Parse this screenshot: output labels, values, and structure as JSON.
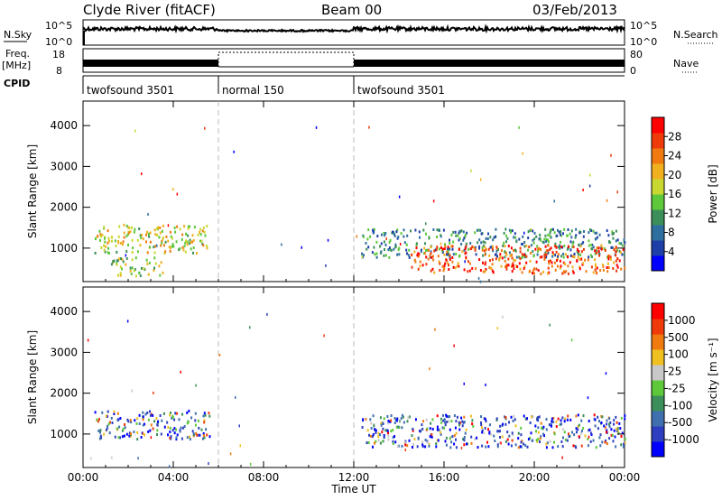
{
  "header": {
    "station": "Clyde River (fitACF)",
    "beam": "Beam 00",
    "date": "03/Feb/2013"
  },
  "summary_panels": {
    "nsky_label": "N.Sky",
    "nsky_ticks": [
      "10^5",
      "10^0"
    ],
    "nsearch_label": "N.Search",
    "nsearch_ticks": [
      "10^5",
      "10^0"
    ],
    "freq_label_1": "Freq.",
    "freq_label_2": "[MHz]",
    "freq_ticks": [
      "18",
      "8"
    ],
    "nave_label": "Nave",
    "nave_ticks": [
      "80",
      "0"
    ],
    "cpid_label": "CPID",
    "cpid_segments": [
      {
        "label": "twofsound 3501",
        "start": 0,
        "end": 6
      },
      {
        "label": "normal 150",
        "start": 6,
        "end": 12
      },
      {
        "label": "twofsound 3501",
        "start": 12,
        "end": 24
      }
    ]
  },
  "chart_data": [
    {
      "type": "heatmap",
      "title": "",
      "xlabel": "",
      "ylabel": "Slant Range [km]",
      "xlim": [
        0,
        24
      ],
      "ylim": [
        180,
        4600
      ],
      "x_ticks": [
        0,
        4,
        8,
        12,
        16,
        20,
        24
      ],
      "y_ticks": [
        1000,
        2000,
        3000,
        4000
      ],
      "colorbar_label": "Power [dB]",
      "colorbar_ticks": [
        "28",
        "24",
        "20",
        "16",
        "12",
        "8",
        "4"
      ],
      "colorbar_range": [
        0,
        32
      ],
      "colorbar_colors": [
        "#0000ff",
        "#1f3fa8",
        "#2f6f9f",
        "#3c8f5a",
        "#5cc83a",
        "#c8d830",
        "#f0b020",
        "#f07a10",
        "#ef3a0a",
        "#ff0000"
      ],
      "scatter_regions": [
        {
          "t0": 0.5,
          "t1": 5.6,
          "r0": 900,
          "r1": 1600,
          "value": 18
        },
        {
          "t0": 1.2,
          "t1": 3.5,
          "r0": 350,
          "r1": 800,
          "value": 16
        },
        {
          "t0": 12.3,
          "t1": 24.0,
          "r0": 800,
          "r1": 1500,
          "value": 10
        },
        {
          "t0": 14.5,
          "t1": 24.0,
          "r0": 400,
          "r1": 1100,
          "value": 26
        }
      ]
    },
    {
      "type": "heatmap",
      "title": "",
      "xlabel": "Time UT",
      "ylabel": "Slant Range [km]",
      "xlim": [
        0,
        24
      ],
      "ylim": [
        180,
        4600
      ],
      "x_ticks": [
        0,
        4,
        8,
        12,
        16,
        20,
        24
      ],
      "x_tick_labels": [
        "00:00",
        "04:00",
        "08:00",
        "12:00",
        "16:00",
        "20:00",
        "00:00"
      ],
      "y_ticks": [
        1000,
        2000,
        3000,
        4000
      ],
      "colorbar_label": "Velocity [m s⁻¹]",
      "colorbar_ticks": [
        "1000",
        "500",
        "100",
        "25",
        "-25",
        "-100",
        "-500",
        "-1000"
      ],
      "colorbar_colors": [
        "#0000ff",
        "#2d3fc0",
        "#3f6faf",
        "#3c8f5a",
        "#5cc83a",
        "#c8c8c8",
        "#f0c020",
        "#f07a10",
        "#ef3a0a",
        "#ff0000"
      ],
      "scatter_regions": [
        {
          "t0": 0.5,
          "t1": 5.6,
          "r0": 900,
          "r1": 1600,
          "value": "mixed"
        },
        {
          "t0": 12.3,
          "t1": 24.0,
          "r0": 700,
          "r1": 1500,
          "value": "mixed"
        }
      ]
    }
  ]
}
